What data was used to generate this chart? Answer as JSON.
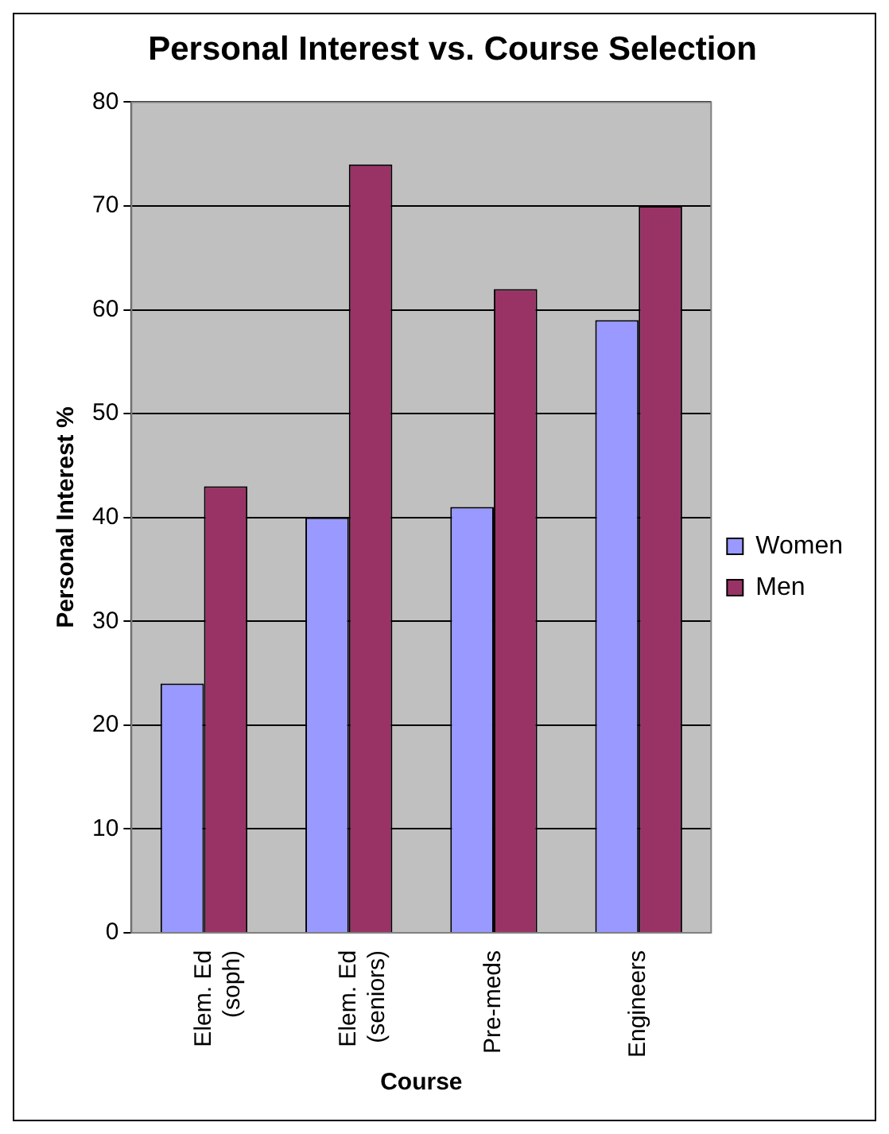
{
  "chart_data": {
    "type": "bar",
    "title": "Personal Interest vs. Course Selection",
    "xlabel": "Course",
    "ylabel": "Personal Interest %",
    "categories": [
      "Elem. Ed (soph)",
      "Elem. Ed (seniors)",
      "Pre-meds",
      "Engineers"
    ],
    "series": [
      {
        "name": "Women",
        "color": "#9999ff",
        "values": [
          24,
          40,
          41,
          59
        ]
      },
      {
        "name": "Men",
        "color": "#993366",
        "values": [
          43,
          74,
          62,
          70
        ]
      }
    ],
    "ylim": [
      0,
      80
    ],
    "yticks": [
      0,
      10,
      20,
      30,
      40,
      50,
      60,
      70,
      80
    ],
    "grid": "y",
    "legend": "right"
  }
}
